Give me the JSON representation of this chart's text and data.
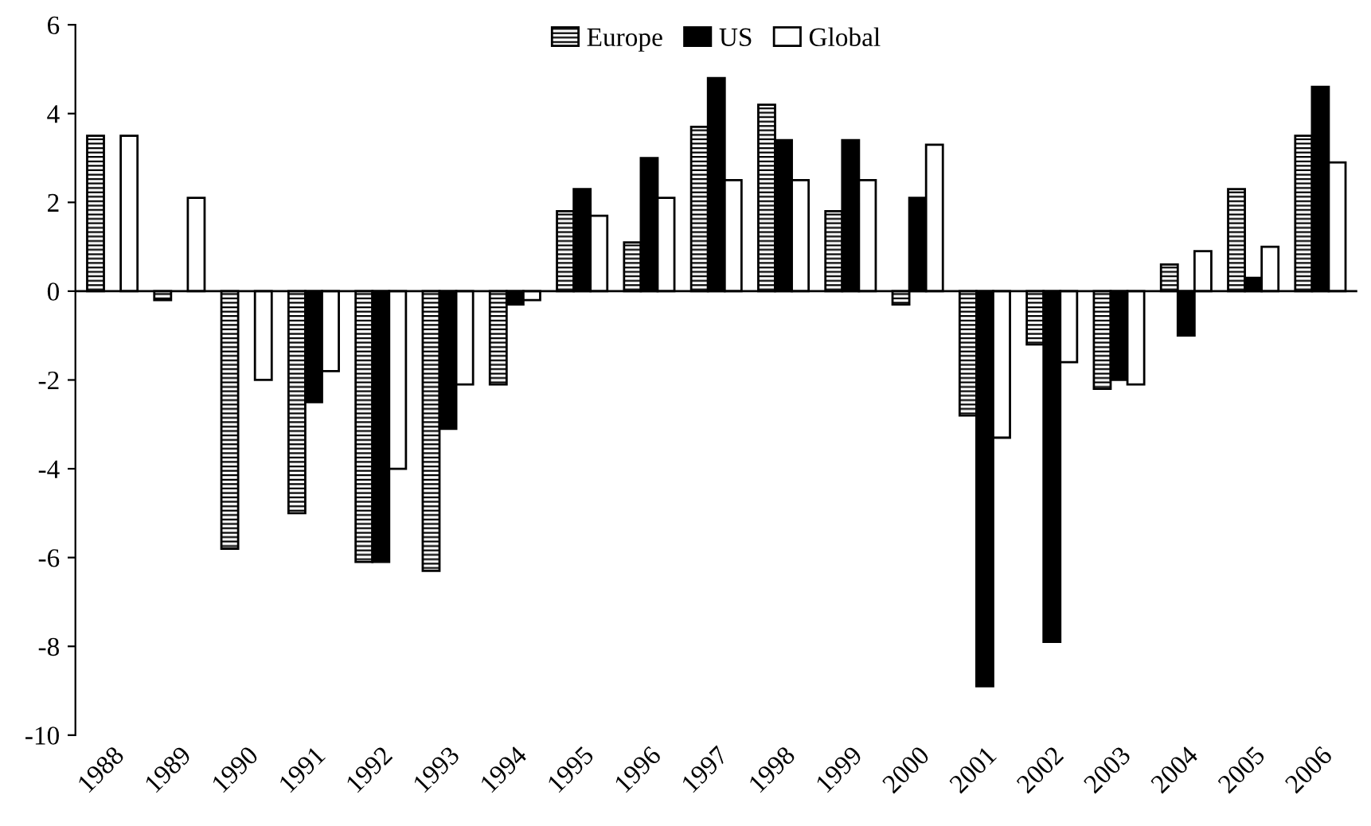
{
  "chart_data": {
    "type": "bar",
    "categories": [
      "1988",
      "1989",
      "1990",
      "1991",
      "1992",
      "1993",
      "1994",
      "1995",
      "1996",
      "1997",
      "1998",
      "1999",
      "2000",
      "2001",
      "2002",
      "2003",
      "2004",
      "2005",
      "2006"
    ],
    "series": [
      {
        "name": "Europe",
        "color": "#000000",
        "values": [
          3.5,
          -0.2,
          -5.8,
          -5.0,
          -6.1,
          -6.3,
          -2.1,
          1.8,
          1.1,
          3.7,
          4.2,
          1.8,
          -0.3,
          -2.8,
          -1.2,
          -2.2,
          0.6,
          2.3,
          3.5
        ]
      },
      {
        "name": "US",
        "color": "#000000",
        "values": [
          null,
          null,
          null,
          -2.5,
          -6.1,
          -3.1,
          -0.3,
          2.3,
          3.0,
          4.8,
          3.4,
          3.4,
          2.1,
          -8.9,
          -7.9,
          -2.0,
          -1.0,
          0.3,
          4.6
        ]
      },
      {
        "name": "Global",
        "color": "#ffffff",
        "values": [
          3.5,
          2.1,
          -2.0,
          -1.8,
          -4.0,
          -2.1,
          -0.2,
          1.7,
          2.1,
          2.5,
          2.5,
          2.5,
          3.3,
          -3.3,
          -1.6,
          -2.1,
          0.9,
          1.0,
          2.9
        ]
      }
    ],
    "ylim": [
      -10,
      6
    ],
    "yticks": [
      -10,
      -8,
      -6,
      -4,
      -2,
      0,
      2,
      4,
      6
    ],
    "legend": "top"
  }
}
